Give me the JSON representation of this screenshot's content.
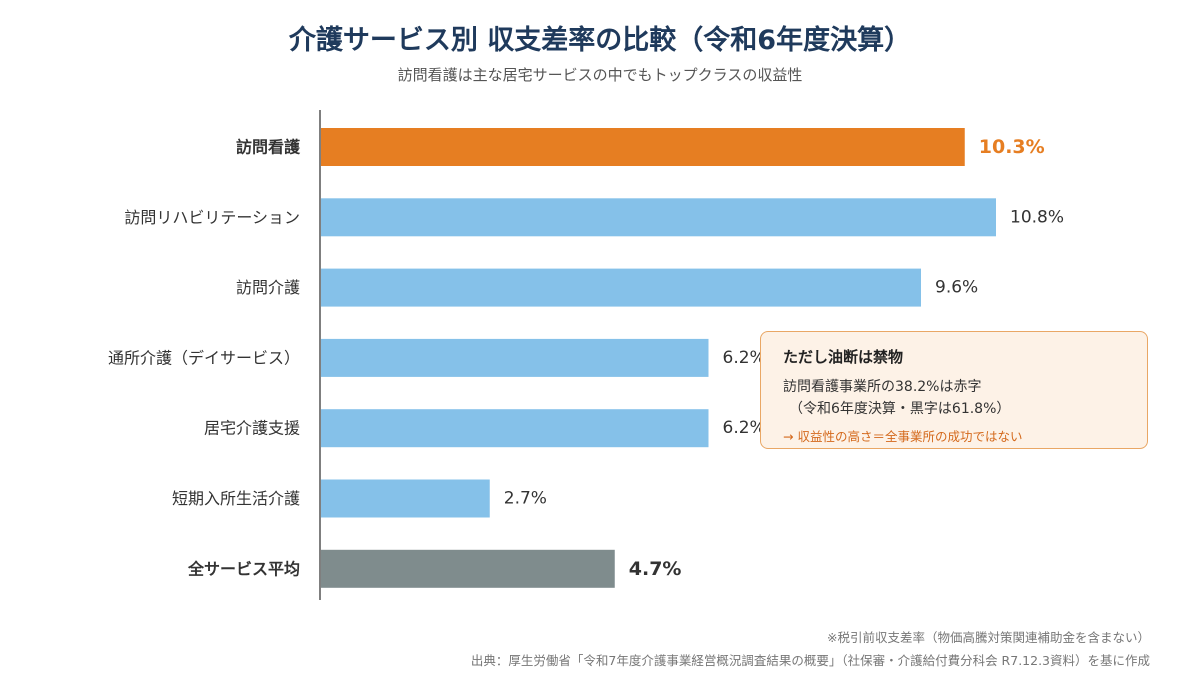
{
  "header": {
    "title": "介護サービス別 収支差率の比較（令和6年度決算）",
    "subtitle": "訪問看護は主な居宅サービスの中でもトップクラスの収益性"
  },
  "chart_data": {
    "type": "bar",
    "orientation": "horizontal",
    "categories": [
      "訪問看護",
      "訪問リハビリテーション",
      "訪問介護",
      "通所介護（デイサービス）",
      "居宅介護支援",
      "短期入所生活介護",
      "全サービス平均"
    ],
    "values": [
      10.3,
      10.8,
      9.6,
      6.2,
      6.2,
      2.7,
      4.7
    ],
    "value_labels": [
      "10.3%",
      "10.8%",
      "9.6%",
      "6.2%",
      "6.2%",
      "2.7%",
      "4.7%"
    ],
    "bar_colors": [
      "#e67e22",
      "#85c1e9",
      "#85c1e9",
      "#85c1e9",
      "#85c1e9",
      "#85c1e9",
      "#7f8c8d"
    ],
    "highlight": [
      true,
      false,
      false,
      false,
      false,
      false,
      true
    ],
    "label_colors": [
      "#e67e22",
      "#333333",
      "#333333",
      "#333333",
      "#333333",
      "#333333",
      "#333333"
    ],
    "xlim": [
      0,
      11.2
    ],
    "grid": false,
    "legend": "none"
  },
  "callout": {
    "title": "ただし油断は禁物",
    "line1": "訪問看護事業所の38.2%は赤字",
    "line2": "（令和6年度決算・黒字は61.8%）",
    "note": "→ 収益性の高さ＝全事業所の成功ではない"
  },
  "footer": {
    "footnote": "※税引前収支差率（物価高騰対策関連補助金を含まない）",
    "source": "出典：厚生労働省「令和7年度介護事業経営概況調査結果の概要」（社保審・介護給付費分科会 R7.12.3資料）を基に作成"
  }
}
